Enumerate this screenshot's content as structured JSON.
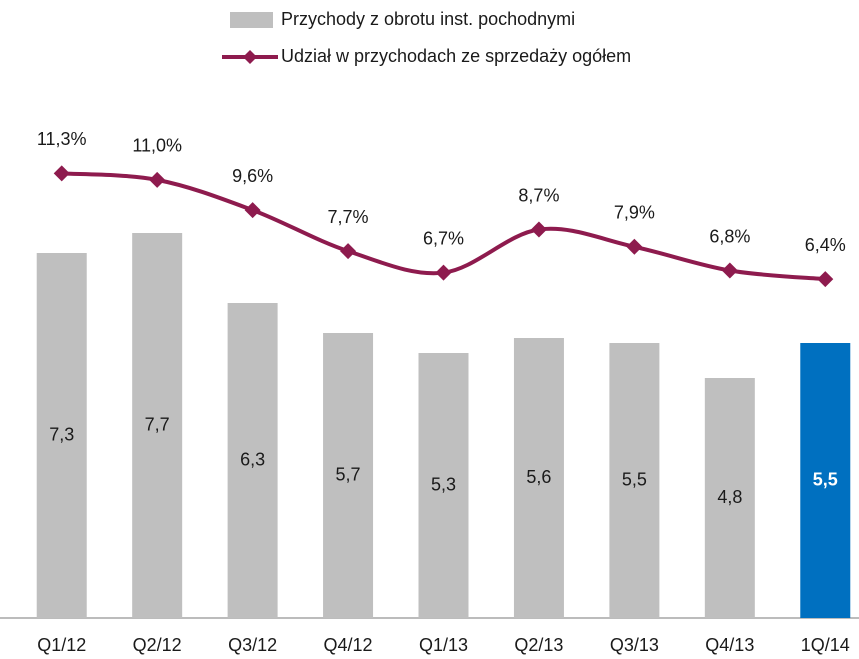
{
  "chart_data": {
    "type": "bar",
    "categories": [
      "Q1/12",
      "Q2/12",
      "Q3/12",
      "Q4/12",
      "Q1/13",
      "Q2/13",
      "Q3/13",
      "Q4/13",
      "1Q/14"
    ],
    "series": [
      {
        "name": "Przychody z obrotu inst. pochodnymi",
        "type": "bar",
        "color": "#bfbfbf",
        "colors": [
          "#bfbfbf",
          "#bfbfbf",
          "#bfbfbf",
          "#bfbfbf",
          "#bfbfbf",
          "#bfbfbf",
          "#bfbfbf",
          "#bfbfbf",
          "#0070c0"
        ],
        "values": [
          7.3,
          7.7,
          6.3,
          5.7,
          5.3,
          5.6,
          5.5,
          4.8,
          5.5
        ],
        "value_labels": [
          "7,3",
          "7,7",
          "6,3",
          "5,7",
          "5,3",
          "5,6",
          "5,5",
          "4,8",
          "5,5"
        ]
      },
      {
        "name": "Udział w przychodach ze sprzedaży ogółem",
        "type": "line",
        "axis": "y2",
        "color": "#8e1b4e",
        "values": [
          11.3,
          11.0,
          9.6,
          7.7,
          6.7,
          8.7,
          7.9,
          6.8,
          6.4
        ],
        "value_labels": [
          "11,3%",
          "11,0%",
          "9,6%",
          "7,7%",
          "6,7%",
          "8,7%",
          "7,9%",
          "6,8%",
          "6,4%"
        ]
      }
    ],
    "ylim": [
      0,
      12
    ],
    "y2lim": [
      -9.3,
      18.5
    ]
  }
}
